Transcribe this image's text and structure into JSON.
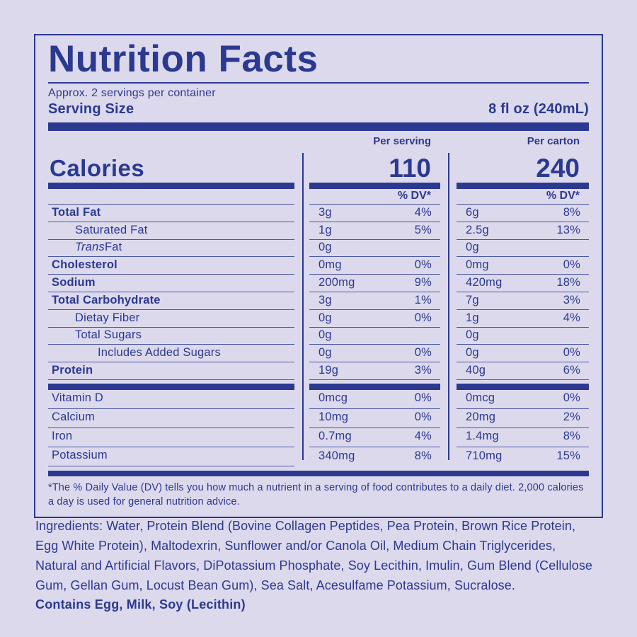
{
  "colors": {
    "background": "#dcd9ec",
    "ink": "#2b3990"
  },
  "panel": {
    "title": "Nutrition Facts",
    "servings_per_container": "Approx. 2 servings per container",
    "serving_size_label": "Serving Size",
    "serving_size_value": "8 fl oz (240mL)",
    "calories": {
      "label": "Calories",
      "per_serving_label": "Per serving",
      "per_serving_value": "110",
      "per_carton_label": "Per carton",
      "per_carton_value": "240"
    },
    "dv_header": "% DV*",
    "nutrients": [
      {
        "name": "Total Fat",
        "bold": true,
        "indent": 0,
        "serving_amount": "3g",
        "serving_dv": "4%",
        "carton_amount": "6g",
        "carton_dv": "8%"
      },
      {
        "name": "Saturated Fat",
        "bold": false,
        "indent": 1,
        "serving_amount": "1g",
        "serving_dv": "5%",
        "carton_amount": "2.5g",
        "carton_dv": "13%"
      },
      {
        "name_italic": "Trans",
        "name": " Fat",
        "bold": false,
        "indent": 1,
        "serving_amount": "0g",
        "serving_dv": "",
        "carton_amount": "0g",
        "carton_dv": ""
      },
      {
        "name": "Cholesterol",
        "bold": true,
        "indent": 0,
        "serving_amount": "0mg",
        "serving_dv": "0%",
        "carton_amount": "0mg",
        "carton_dv": "0%"
      },
      {
        "name": "Sodium",
        "bold": true,
        "indent": 0,
        "serving_amount": "200mg",
        "serving_dv": "9%",
        "carton_amount": "420mg",
        "carton_dv": "18%"
      },
      {
        "name": "Total Carbohydrate",
        "bold": true,
        "indent": 0,
        "serving_amount": "3g",
        "serving_dv": "1%",
        "carton_amount": "7g",
        "carton_dv": "3%"
      },
      {
        "name": "Dietay Fiber",
        "bold": false,
        "indent": 1,
        "serving_amount": "0g",
        "serving_dv": "0%",
        "carton_amount": "1g",
        "carton_dv": "4%"
      },
      {
        "name": "Total Sugars",
        "bold": false,
        "indent": 1,
        "serving_amount": "0g",
        "serving_dv": "",
        "carton_amount": "0g",
        "carton_dv": ""
      },
      {
        "name": "Includes Added Sugars",
        "bold": false,
        "indent": 2,
        "serving_amount": "0g",
        "serving_dv": "0%",
        "carton_amount": "0g",
        "carton_dv": "0%"
      },
      {
        "name": "Protein",
        "bold": true,
        "indent": 0,
        "serving_amount": "19g",
        "serving_dv": "3%",
        "carton_amount": "40g",
        "carton_dv": "6%"
      }
    ],
    "vitamins": [
      {
        "name": "Vitamin D",
        "serving_amount": "0mcg",
        "serving_dv": "0%",
        "carton_amount": "0mcg",
        "carton_dv": "0%"
      },
      {
        "name": "Calcium",
        "serving_amount": "10mg",
        "serving_dv": "0%",
        "carton_amount": "20mg",
        "carton_dv": "2%"
      },
      {
        "name": "Iron",
        "serving_amount": "0.7mg",
        "serving_dv": "4%",
        "carton_amount": "1.4mg",
        "carton_dv": "8%"
      },
      {
        "name": "Potassium",
        "serving_amount": "340mg",
        "serving_dv": "8%",
        "carton_amount": "710mg",
        "carton_dv": "15%"
      }
    ],
    "footnote": "*The % Daily Value (DV) tells you how much a nutrient in a serving of food contributes to a daily diet. 2,000 calories a day is used for general nutrition advice."
  },
  "ingredients": "Ingredients: Water, Protein Blend (Bovine Collagen Peptides, Pea Protein, Brown Rice Protein, Egg White Protein), Maltodexrin, Sunflower and/or Canola Oil, Medium Chain Triglycerides, Natural and Artificial Flavors, DiPotassium Phosphate, Soy Lecithin, Imulin, Gum Blend (Cellulose Gum, Gellan Gum, Locust Bean Gum), Sea Salt, Acesulfame Potassium, Sucralose.",
  "contains": "Contains Egg, Milk, Soy (Lecithin)"
}
